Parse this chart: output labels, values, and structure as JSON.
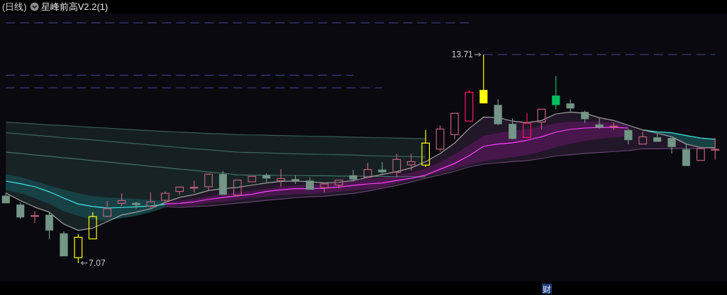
{
  "chart_data": {
    "type": "candlestick",
    "title": "(日线)",
    "subtitle": "星峰前高V2.2(1)",
    "tick_labels": false,
    "ylim": [
      6.48,
      15.02
    ],
    "categories": [
      null,
      null,
      null,
      null,
      null,
      null,
      null,
      null,
      null,
      null,
      null,
      null,
      null,
      null,
      null,
      null,
      null,
      null,
      null,
      null,
      null,
      null,
      null,
      null,
      null,
      null,
      null,
      null,
      null,
      null,
      null,
      null,
      null,
      null,
      null,
      null,
      null,
      null,
      null,
      null,
      null,
      null,
      null,
      null,
      null,
      null,
      null,
      null,
      null,
      null
    ],
    "ohlc": [
      [
        9.21,
        9.31,
        8.98,
        8.98
      ],
      [
        8.93,
        9.0,
        8.48,
        8.53
      ],
      [
        8.57,
        8.73,
        8.35,
        8.58
      ],
      [
        8.6,
        8.71,
        7.84,
        8.11
      ],
      [
        8.01,
        8.08,
        7.29,
        7.29
      ],
      [
        7.24,
        7.99,
        7.07,
        7.89
      ],
      [
        7.84,
        8.69,
        7.84,
        8.55
      ],
      [
        8.56,
        9.05,
        8.53,
        8.8
      ],
      [
        8.97,
        9.29,
        8.89,
        9.06
      ],
      [
        8.98,
        9.02,
        8.8,
        8.92
      ],
      [
        8.88,
        9.32,
        8.78,
        9.02
      ],
      [
        9.07,
        9.35,
        9.03,
        9.29
      ],
      [
        9.35,
        9.49,
        9.24,
        9.49
      ],
      [
        9.47,
        9.69,
        9.32,
        9.48
      ],
      [
        9.5,
        9.92,
        9.38,
        9.9
      ],
      [
        9.9,
        10.0,
        9.25,
        9.25
      ],
      [
        9.23,
        9.71,
        9.19,
        9.71
      ],
      [
        9.66,
        9.83,
        9.66,
        9.83
      ],
      [
        9.86,
        9.93,
        9.65,
        9.77
      ],
      [
        9.69,
        10.06,
        9.5,
        9.76
      ],
      [
        9.74,
        9.86,
        9.59,
        9.68
      ],
      [
        9.69,
        9.79,
        9.41,
        9.41
      ],
      [
        9.47,
        9.59,
        9.32,
        9.59
      ],
      [
        9.55,
        9.71,
        9.44,
        9.71
      ],
      [
        9.86,
        10.04,
        9.66,
        9.74
      ],
      [
        9.8,
        10.26,
        9.8,
        10.05
      ],
      [
        10.04,
        10.28,
        9.87,
        9.97
      ],
      [
        9.96,
        10.55,
        9.81,
        10.37
      ],
      [
        10.2,
        10.55,
        10.02,
        10.3
      ],
      [
        10.19,
        11.31,
        10.13,
        10.89
      ],
      [
        10.7,
        11.45,
        10.62,
        11.34
      ],
      [
        11.16,
        11.84,
        11.01,
        11.84
      ],
      [
        11.59,
        12.59,
        11.59,
        12.51
      ],
      [
        12.58,
        13.71,
        12.16,
        12.16
      ],
      [
        12.1,
        12.29,
        11.46,
        11.5
      ],
      [
        11.5,
        11.68,
        11.01,
        11.03
      ],
      [
        11.07,
        11.84,
        11.07,
        11.52
      ],
      [
        11.56,
        11.97,
        11.33,
        11.97
      ],
      [
        12.4,
        13.03,
        11.97,
        12.11
      ],
      [
        12.15,
        12.27,
        11.9,
        12.0
      ],
      [
        11.88,
        11.93,
        11.54,
        11.66
      ],
      [
        11.48,
        11.7,
        11.35,
        11.39
      ],
      [
        11.42,
        11.55,
        11.3,
        11.43
      ],
      [
        11.3,
        11.35,
        10.85,
        10.99
      ],
      [
        10.86,
        11.25,
        10.86,
        11.09
      ],
      [
        11.07,
        11.2,
        10.94,
        10.94
      ],
      [
        11.05,
        11.05,
        10.56,
        10.77
      ],
      [
        10.69,
        10.85,
        10.17,
        10.17
      ],
      [
        10.34,
        10.75,
        10.34,
        10.71
      ],
      [
        10.68,
        11.05,
        10.36,
        10.69
      ]
    ],
    "colors": [
      "#749688",
      "#749688",
      "#c0607c",
      "#749688",
      "#749688",
      "#ffff00",
      "#ffff00",
      "#c0607c",
      "#c0607c",
      "#749688",
      "#c0607c",
      "#c0607c",
      "#c0607c",
      "#c0607c",
      "#c0607c",
      "#749688",
      "#c0607c",
      "#c0607c",
      "#749688",
      "#c0607c",
      "#749688",
      "#749688",
      "#c0607c",
      "#c0607c",
      "#749688",
      "#c0607c",
      "#749688",
      "#c0607c",
      "#c0607c",
      "#ffff00",
      "#c0607c",
      "#c0607c",
      "#ff1464",
      "#ffff00",
      "#749688",
      "#749688",
      "#ff1464",
      "#c0607c",
      "#00c060",
      "#749688",
      "#749688",
      "#749688",
      "#c0607c",
      "#749688",
      "#c0607c",
      "#749688",
      "#749688",
      "#749688",
      "#c0607c",
      "#c0607c"
    ],
    "series": [
      {
        "type": "line",
        "color": "#3a5c58",
        "values": [
          11.56,
          11.53,
          11.5,
          11.47,
          11.45,
          11.42,
          11.39,
          11.37,
          11.34,
          11.31,
          11.29,
          11.26,
          11.24,
          11.22,
          11.2,
          11.18,
          11.16,
          11.15,
          11.14,
          11.13,
          11.12,
          11.11,
          11.1,
          11.09,
          11.08,
          11.07,
          11.06,
          11.05,
          11.04,
          11.03,
          null,
          null,
          null,
          null,
          null,
          null,
          null,
          null,
          null,
          null,
          null,
          null,
          null,
          null,
          null,
          null,
          null,
          null,
          null,
          null
        ],
        "lower": [
          11.22,
          11.18,
          11.14,
          11.1,
          11.06,
          11.03,
          10.99,
          10.95,
          10.91,
          10.87,
          10.83,
          10.79,
          10.75,
          10.71,
          10.68,
          10.64,
          10.6,
          10.59,
          10.58,
          10.56,
          10.55,
          10.54,
          10.53,
          10.52,
          10.51,
          10.49,
          10.48,
          10.47,
          10.46,
          10.45,
          null,
          null,
          null,
          null,
          null,
          null,
          null,
          null,
          null,
          null,
          null,
          null,
          null,
          null,
          null,
          null,
          null,
          null,
          null,
          null
        ],
        "upper": [
          11.56,
          11.53,
          11.5,
          11.47,
          11.45,
          11.42,
          11.39,
          11.37,
          11.34,
          11.31,
          11.29,
          11.26,
          11.24,
          11.22,
          11.2,
          11.18,
          11.16,
          11.15,
          11.14,
          11.13,
          11.12,
          11.11,
          11.1,
          11.09,
          11.08,
          11.07,
          11.06,
          11.05,
          11.04,
          11.03,
          null,
          null,
          null,
          null,
          null,
          null,
          null,
          null,
          null,
          null,
          null,
          null,
          null,
          null,
          null,
          null,
          null,
          null,
          null,
          null
        ]
      },
      {
        "type": "line",
        "color": "#3e6660",
        "values": [
          11.22,
          11.18,
          11.14,
          11.1,
          11.06,
          11.03,
          10.99,
          10.95,
          10.91,
          10.87,
          10.83,
          10.79,
          10.75,
          10.71,
          10.68,
          10.64,
          10.6,
          10.59,
          10.58,
          10.56,
          10.55,
          10.54,
          10.53,
          10.52,
          10.51,
          10.49,
          10.48,
          10.47,
          10.46,
          10.45,
          null,
          null,
          null,
          null,
          null,
          null,
          null,
          null,
          null,
          null,
          null,
          null,
          null,
          null,
          null,
          null,
          null,
          null,
          null,
          null
        ],
        "lower": [
          10.6,
          10.56,
          10.51,
          10.47,
          10.42,
          10.38,
          10.33,
          10.29,
          10.24,
          10.2,
          10.15,
          10.11,
          10.06,
          10.02,
          9.97,
          9.93,
          9.88,
          9.87,
          9.87,
          9.86,
          9.86,
          9.85,
          9.85,
          9.84,
          9.84,
          9.83,
          9.83,
          9.82,
          9.82,
          9.81,
          null,
          null,
          null,
          null,
          null,
          null,
          null,
          null,
          null,
          null,
          null,
          null,
          null,
          null,
          null,
          null,
          null,
          null,
          null,
          null
        ],
        "upper": [
          11.22,
          11.18,
          11.14,
          11.1,
          11.06,
          11.03,
          10.99,
          10.95,
          10.91,
          10.87,
          10.83,
          10.79,
          10.75,
          10.71,
          10.68,
          10.64,
          10.6,
          10.59,
          10.58,
          10.56,
          10.55,
          10.54,
          10.53,
          10.52,
          10.51,
          10.49,
          10.48,
          10.47,
          10.46,
          10.45,
          null,
          null,
          null,
          null,
          null,
          null,
          null,
          null,
          null,
          null,
          null,
          null,
          null,
          null,
          null,
          null,
          null,
          null,
          null,
          null
        ]
      },
      {
        "type": "line",
        "color": "#447068",
        "values": [
          10.6,
          10.56,
          10.51,
          10.47,
          10.42,
          10.38,
          10.33,
          10.29,
          10.24,
          10.2,
          10.15,
          10.11,
          10.06,
          10.02,
          9.97,
          9.93,
          9.88,
          9.87,
          9.87,
          9.86,
          9.86,
          9.85,
          9.85,
          9.84,
          9.84,
          9.83,
          9.83,
          9.82,
          9.82,
          9.81,
          null,
          null,
          null,
          null,
          null,
          null,
          null,
          null,
          null,
          null,
          null,
          null,
          null,
          null,
          null,
          null,
          null,
          null,
          null,
          null
        ],
        "lower": [
          9.3,
          9.06,
          8.85,
          8.69,
          8.31,
          8.11,
          8.18,
          8.39,
          8.6,
          8.69,
          8.8,
          9.0,
          9.16,
          9.25,
          9.38,
          9.44,
          9.48,
          9.55,
          9.62,
          9.67,
          9.68,
          9.66,
          9.62,
          9.64,
          9.7,
          null,
          null,
          null,
          null,
          null,
          null,
          null,
          null,
          null,
          null,
          null,
          null,
          null,
          null,
          null,
          null,
          null,
          null,
          null,
          null,
          null,
          null,
          null,
          null,
          null
        ],
        "upper": [
          10.6,
          10.56,
          10.51,
          10.47,
          10.42,
          10.38,
          10.33,
          10.29,
          10.24,
          10.2,
          10.15,
          10.11,
          10.06,
          10.02,
          9.97,
          9.93,
          9.88,
          9.87,
          9.87,
          9.86,
          9.86,
          9.85,
          9.85,
          9.84,
          9.84,
          null,
          null,
          null,
          null,
          null,
          null,
          null,
          null,
          null,
          null,
          null,
          null,
          null,
          null,
          null,
          null,
          null,
          null,
          null,
          null,
          null,
          null,
          null,
          null,
          null
        ]
      },
      {
        "type": "line",
        "color": "#6a4272",
        "values": [
          null,
          null,
          null,
          null,
          null,
          null,
          null,
          null,
          null,
          null,
          null,
          8.87,
          8.84,
          8.87,
          8.89,
          8.93,
          8.98,
          9.02,
          9.07,
          9.11,
          9.15,
          9.18,
          9.2,
          9.25,
          9.29,
          9.36,
          9.45,
          9.54,
          9.65,
          9.77,
          9.88,
          9.99,
          10.13,
          10.22,
          10.26,
          10.3,
          10.33,
          10.4,
          10.48,
          10.52,
          10.56,
          10.59,
          10.62,
          10.65,
          10.71,
          10.71,
          10.72,
          10.72,
          10.73,
          10.73
        ],
        "lower": [
          null,
          null,
          null,
          null,
          null,
          null,
          null,
          null,
          null,
          null,
          null,
          8.87,
          8.84,
          8.87,
          8.89,
          8.93,
          8.98,
          9.02,
          9.07,
          9.11,
          9.15,
          9.18,
          9.2,
          9.25,
          9.29,
          9.36,
          9.45,
          9.54,
          9.65,
          9.77,
          9.88,
          9.99,
          10.13,
          10.22,
          10.26,
          10.3,
          10.33,
          10.4,
          10.48,
          10.52,
          10.56,
          10.59,
          10.62,
          10.65,
          10.71,
          10.71,
          10.72,
          10.72,
          10.73,
          10.73
        ],
        "upper": [
          null,
          null,
          null,
          null,
          null,
          null,
          null,
          null,
          null,
          null,
          null,
          9.0,
          9.16,
          9.25,
          9.38,
          9.44,
          9.48,
          9.55,
          9.62,
          9.67,
          9.68,
          9.66,
          9.62,
          9.64,
          9.7,
          9.8,
          9.89,
          9.98,
          10.1,
          10.3,
          10.56,
          10.89,
          11.35,
          11.72,
          11.7,
          11.59,
          11.54,
          11.61,
          11.82,
          11.88,
          11.84,
          11.7,
          11.61,
          11.46,
          11.31,
          11.2,
          11.09,
          10.86,
          10.75,
          10.74
        ]
      },
      {
        "type": "line",
        "color": "#40e8e8",
        "values": [
          9.68,
          9.6,
          9.5,
          9.34,
          9.14,
          8.95,
          8.87,
          8.82,
          8.84,
          8.86,
          8.89,
          8.94,
          null,
          null,
          null,
          null,
          null,
          null,
          null,
          null,
          null,
          null,
          null,
          null,
          null,
          null,
          null,
          null,
          null,
          null,
          null,
          null,
          null,
          null,
          null,
          null,
          null,
          null,
          null,
          null,
          null,
          null,
          null,
          null,
          11.31,
          11.25,
          11.22,
          11.13,
          11.05,
          11.01
        ],
        "lower": [
          9.4,
          9.29,
          9.14,
          8.95,
          8.72,
          8.57,
          8.46,
          8.42,
          8.5,
          8.57,
          8.69,
          8.84,
          null,
          null,
          null,
          null,
          null,
          null,
          null,
          null,
          null,
          null,
          null,
          null,
          null,
          null,
          null,
          null,
          null,
          null,
          null,
          null,
          null,
          null,
          null,
          null,
          null,
          null,
          null,
          null,
          null,
          null,
          null,
          null,
          11.31,
          11.2,
          11.09,
          10.86,
          10.75,
          10.74
        ],
        "upper": [
          9.9,
          9.81,
          9.68,
          9.54,
          9.41,
          9.29,
          9.2,
          9.16,
          9.14,
          9.11,
          9.09,
          9.05,
          null,
          null,
          null,
          null,
          null,
          null,
          null,
          null,
          null,
          null,
          null,
          null,
          null,
          null,
          null,
          null,
          null,
          null,
          null,
          null,
          null,
          null,
          null,
          null,
          null,
          null,
          null,
          null,
          null,
          null,
          null,
          null,
          11.31,
          11.25,
          11.22,
          11.13,
          11.05,
          11.01
        ]
      },
      {
        "type": "line",
        "color": "#ff40ff",
        "values": [
          null,
          null,
          null,
          null,
          null,
          null,
          null,
          null,
          null,
          null,
          null,
          8.95,
          8.97,
          9.02,
          9.1,
          9.16,
          9.21,
          9.26,
          9.35,
          9.4,
          9.44,
          9.44,
          9.45,
          9.49,
          9.54,
          9.59,
          9.62,
          9.7,
          9.77,
          9.87,
          10.06,
          10.24,
          10.49,
          10.79,
          10.86,
          10.9,
          10.98,
          11.09,
          11.24,
          11.33,
          11.37,
          11.39,
          11.39,
          11.37,
          null,
          null,
          null,
          null,
          null,
          null
        ],
        "lower": [
          null,
          null,
          null,
          null,
          null,
          null,
          null,
          null,
          null,
          null,
          null,
          8.91,
          8.89,
          8.91,
          8.98,
          9.02,
          9.07,
          9.14,
          9.18,
          9.23,
          9.25,
          9.27,
          9.29,
          9.34,
          9.38,
          9.43,
          9.47,
          9.61,
          9.72,
          9.83,
          9.95,
          10.06,
          10.2,
          10.31,
          10.38,
          10.44,
          10.51,
          10.62,
          10.76,
          10.87,
          10.96,
          11.03,
          11.07,
          11.1,
          null,
          null,
          null,
          null,
          null,
          null
        ],
        "upper": [
          null,
          null,
          null,
          null,
          null,
          null,
          null,
          null,
          null,
          null,
          null,
          9.0,
          9.05,
          9.11,
          9.2,
          9.27,
          9.32,
          9.38,
          9.45,
          9.5,
          9.54,
          9.56,
          9.59,
          9.63,
          9.68,
          9.74,
          9.79,
          9.86,
          9.95,
          10.08,
          10.29,
          10.53,
          10.83,
          11.12,
          11.21,
          11.28,
          11.34,
          11.43,
          11.52,
          11.57,
          11.57,
          11.57,
          11.55,
          11.45,
          null,
          null,
          null,
          null,
          null,
          null
        ]
      },
      {
        "type": "line",
        "color": "#a0a0a0",
        "values": [
          9.3,
          9.06,
          8.85,
          8.69,
          8.31,
          8.11,
          8.18,
          8.39,
          8.6,
          8.69,
          8.8,
          9.0,
          9.16,
          9.25,
          9.38,
          9.44,
          9.48,
          9.55,
          9.62,
          9.67,
          9.68,
          9.66,
          9.62,
          9.64,
          9.7,
          9.8,
          9.89,
          9.98,
          10.1,
          10.3,
          10.56,
          10.89,
          11.35,
          11.72,
          11.7,
          11.59,
          11.54,
          11.61,
          11.82,
          11.88,
          11.84,
          11.7,
          11.61,
          11.46,
          11.31,
          11.2,
          11.09,
          10.86,
          10.75,
          10.74
        ]
      },
      {
        "type": "line",
        "color": "#3c3c7a",
        "line_style": "dashed",
        "values": [
          12.65,
          12.65,
          12.65,
          12.65,
          12.65,
          12.65,
          12.65,
          12.65,
          12.65,
          12.65,
          12.65,
          12.65,
          12.65,
          12.65,
          12.65,
          12.65,
          12.65,
          12.65,
          12.65,
          12.65,
          12.65,
          12.65,
          12.65,
          12.65,
          12.65,
          12.65,
          12.65,
          null,
          null,
          null,
          null,
          null,
          null,
          null,
          null,
          null,
          null,
          null,
          null,
          null,
          null,
          null,
          null,
          null,
          null,
          null,
          null,
          null,
          null,
          null
        ]
      },
      {
        "type": "line",
        "color": "#3c3c7a",
        "line_style": "dashed",
        "values": [
          13.05,
          13.05,
          13.05,
          13.05,
          13.05,
          13.05,
          13.05,
          13.05,
          13.05,
          13.05,
          13.05,
          13.05,
          13.05,
          13.05,
          13.05,
          13.05,
          13.05,
          13.05,
          13.05,
          13.05,
          13.05,
          13.05,
          13.05,
          13.05,
          13.05,
          null,
          null,
          null,
          null,
          null,
          null,
          null,
          null,
          null,
          null,
          null,
          null,
          null,
          null,
          null,
          null,
          null,
          null,
          null,
          null,
          null,
          null,
          null,
          null,
          null
        ]
      },
      {
        "type": "line",
        "color": "#3c3c7a",
        "line_style": "dashed",
        "values": [
          null,
          null,
          null,
          null,
          null,
          null,
          null,
          null,
          null,
          null,
          null,
          null,
          null,
          null,
          null,
          null,
          null,
          null,
          null,
          null,
          null,
          null,
          null,
          null,
          null,
          null,
          null,
          null,
          null,
          null,
          null,
          null,
          null,
          13.71,
          13.71,
          13.71,
          13.71,
          13.71,
          13.71,
          13.71,
          13.71,
          13.71,
          13.71,
          13.71,
          13.71,
          13.71,
          13.71,
          13.71,
          13.71,
          13.71
        ]
      },
      {
        "type": "line",
        "color": "#3c3c7a",
        "line_style": "dashed",
        "values": [
          14.72,
          14.72,
          14.72,
          14.72,
          14.72,
          14.72,
          14.72,
          14.72,
          14.72,
          14.72,
          14.72,
          14.72,
          14.72,
          14.72,
          14.72,
          14.72,
          14.72,
          14.72,
          14.72,
          14.72,
          14.72,
          14.72,
          14.72,
          14.72,
          14.72,
          14.72,
          14.72,
          14.72,
          14.72,
          14.72,
          14.72,
          14.72,
          14.72,
          null,
          null,
          null,
          null,
          null,
          null,
          null,
          null,
          null,
          null,
          null,
          null,
          null,
          null,
          null,
          null,
          null
        ]
      }
    ],
    "annotations": [
      "13.71",
      "7.07",
      "财"
    ]
  }
}
